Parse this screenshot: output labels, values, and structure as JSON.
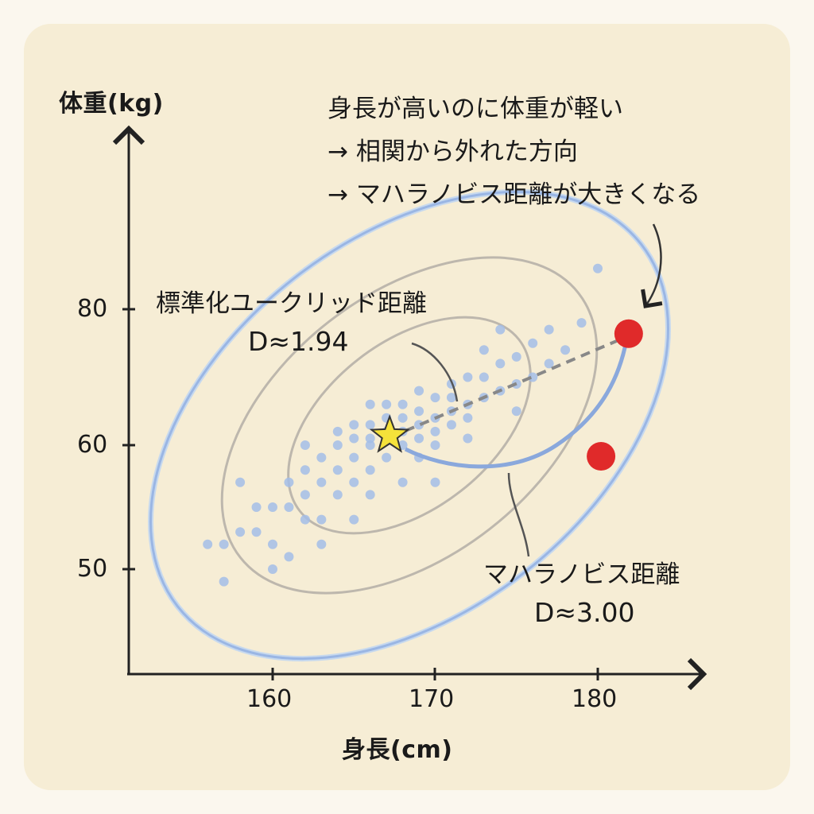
{
  "chart_data": {
    "type": "scatter",
    "title": "",
    "xlabel": "身長(cm)",
    "ylabel": "体重(kg)",
    "xticks": [
      160,
      170,
      180
    ],
    "yticks": [
      50,
      60,
      80
    ],
    "grid": false,
    "center": {
      "x": 167.2,
      "y": 61.4,
      "marker": "star"
    },
    "outliers": [
      {
        "x": 181.9,
        "y": 76.4,
        "label": "Mahalanobis D≈3.00"
      },
      {
        "x": 180.2,
        "y": 59.1
      }
    ],
    "points": [
      [
        167,
        61
      ],
      [
        166,
        60
      ],
      [
        168,
        62
      ],
      [
        165,
        59
      ],
      [
        169,
        63
      ],
      [
        167,
        62
      ],
      [
        166,
        61
      ],
      [
        168,
        60
      ],
      [
        164,
        58
      ],
      [
        170,
        64
      ],
      [
        171,
        65
      ],
      [
        163,
        57
      ],
      [
        165,
        61
      ],
      [
        169,
        61
      ],
      [
        167,
        59
      ],
      [
        168,
        64
      ],
      [
        166,
        58
      ],
      [
        170,
        62
      ],
      [
        172,
        66
      ],
      [
        162,
        56
      ],
      [
        164,
        60
      ],
      [
        171,
        63
      ],
      [
        173,
        67
      ],
      [
        161,
        55
      ],
      [
        165,
        57
      ],
      [
        169,
        65
      ],
      [
        167,
        64
      ],
      [
        166,
        63
      ],
      [
        170,
        60
      ],
      [
        163,
        59
      ],
      [
        172,
        64
      ],
      [
        174,
        68
      ],
      [
        160,
        55
      ],
      [
        162,
        58
      ],
      [
        168,
        66
      ],
      [
        171,
        67
      ],
      [
        164,
        56
      ],
      [
        175,
        69
      ],
      [
        159,
        53
      ],
      [
        173,
        70
      ],
      [
        166,
        56
      ],
      [
        169,
        59
      ],
      [
        176,
        70
      ],
      [
        161,
        57
      ],
      [
        163,
        54
      ],
      [
        172,
        61
      ],
      [
        174,
        72
      ],
      [
        158,
        53
      ],
      [
        160,
        52
      ],
      [
        170,
        67
      ],
      [
        177,
        72
      ],
      [
        165,
        63
      ],
      [
        167,
        66
      ],
      [
        162,
        54
      ],
      [
        175,
        73
      ],
      [
        178,
        74
      ],
      [
        159,
        55
      ],
      [
        157,
        52
      ],
      [
        161,
        51
      ],
      [
        176,
        75
      ],
      [
        173,
        74
      ],
      [
        163,
        52
      ],
      [
        165,
        54
      ],
      [
        171,
        69
      ],
      [
        156,
        52
      ],
      [
        157,
        49
      ],
      [
        160,
        50
      ],
      [
        174,
        77
      ],
      [
        179,
        78
      ],
      [
        180,
        86
      ],
      [
        164,
        62
      ],
      [
        168,
        57
      ],
      [
        162,
        60
      ],
      [
        170,
        57
      ],
      [
        172,
        70
      ],
      [
        166,
        66
      ],
      [
        169,
        68
      ],
      [
        158,
        57
      ],
      [
        177,
        77
      ],
      [
        175,
        65
      ]
    ],
    "ellipse_levels": [
      1,
      2,
      3
    ]
  },
  "labels": {
    "y_axis": "体重(kg)",
    "x_axis": "身長(cm)",
    "euclid_title": "標準化ユークリッド距離",
    "euclid_value": "D≈1.94",
    "mahal_title": "マハラノビス距離",
    "mahal_value": "D≈3.00",
    "note_line1": "身長が高いのに体重が軽い",
    "note_line2": "→ 相関から外れた方向",
    "note_line3": "→ マハラノビス距離が大きくなる"
  },
  "colors": {
    "points": "#a3bde8",
    "outlier": "#e02a2a",
    "star": "#f5e23a",
    "ellipse_outer": "#9ab6e4",
    "ellipse_inner": "#b9b4ab"
  }
}
